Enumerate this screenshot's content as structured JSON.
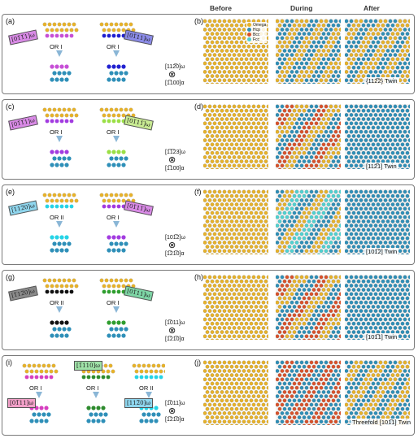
{
  "columns": {
    "before": "Before",
    "during": "During",
    "after": "After"
  },
  "legend": [
    {
      "label": "Omega",
      "color": "#e7b22a"
    },
    {
      "label": "Hcp",
      "color": "#2e8fb8"
    },
    {
      "label": "Bcc",
      "color": "#d9522b"
    },
    {
      "label": "Fcc",
      "color": "#4fd1d1"
    }
  ],
  "rows": [
    {
      "left": "(a)",
      "right": "(b)",
      "or": [
        "OR I",
        "OR I"
      ],
      "tags": [
        "[01̅1̅1]ω",
        "[01̅11]ω"
      ],
      "axis_top": "[112̅0]ω",
      "axis_bottom": "[1̅100]α",
      "twin": "{112̅2} Twin",
      "colors": {
        "before": [
          "#e7b22a"
        ],
        "during": [
          "#e7b22a",
          "#2e8fb8"
        ],
        "after": [
          "#2e8fb8",
          "#e7b22a"
        ]
      }
    },
    {
      "left": "(c)",
      "right": "(d)",
      "or": [
        "OR I",
        "OR I"
      ],
      "tags": [
        "[01̅1̅1]ω",
        "[01̅11̅]ω"
      ],
      "axis_top": "[1̅1̅23]ω",
      "axis_bottom": "[1̅100]α",
      "twin": "[112̅1] Twin",
      "colors": {
        "before": [
          "#e7b22a"
        ],
        "during": [
          "#2e8fb8",
          "#d9522b",
          "#e7b22a"
        ],
        "after": [
          "#2e8fb8"
        ]
      }
    },
    {
      "left": "(e)",
      "right": "(f)",
      "or": [
        "OR II",
        "OR I"
      ],
      "tags": [
        "[112̅0]ω",
        "[01̅11̅]ω"
      ],
      "axis_top": "[101̅2]ω",
      "axis_bottom": "[1̅21̅0]α",
      "twin": "[101̅2] Twin",
      "colors": {
        "before": [
          "#e7b22a"
        ],
        "during": [
          "#2e8fb8",
          "#e7b22a",
          "#4fd1d1"
        ],
        "after": [
          "#2e8fb8"
        ]
      }
    },
    {
      "left": "(g)",
      "right": "(h)",
      "or": [
        "OR II",
        "OR I"
      ],
      "tags": [
        "[1̅12̅0]ω",
        "[01̅11]ω"
      ],
      "axis_top": "[1̅011]ω",
      "axis_bottom": "[1̅21̅0]α",
      "twin": "[101̅1] Twin",
      "colors": {
        "before": [
          "#e7b22a"
        ],
        "during": [
          "#2e8fb8",
          "#d9522b",
          "#e7b22a"
        ],
        "after": [
          "#2e8fb8"
        ]
      }
    },
    {
      "left": "(i)",
      "right": "(j)",
      "or": [
        "OR I",
        "OR I",
        "OR II"
      ],
      "tags": [
        "[01̅11]ω",
        "[1̅110]ω",
        "[112̅0]ω"
      ],
      "axis_top": "[1̅011]ω",
      "axis_bottom": "[1̅21̅0]α",
      "twin": "Threefold [101̅1] Twin",
      "colors": {
        "before": [
          "#e7b22a"
        ],
        "during": [
          "#2e8fb8",
          "#d9522b"
        ],
        "after": [
          "#2e8fb8",
          "#e7b22a"
        ]
      }
    }
  ]
}
